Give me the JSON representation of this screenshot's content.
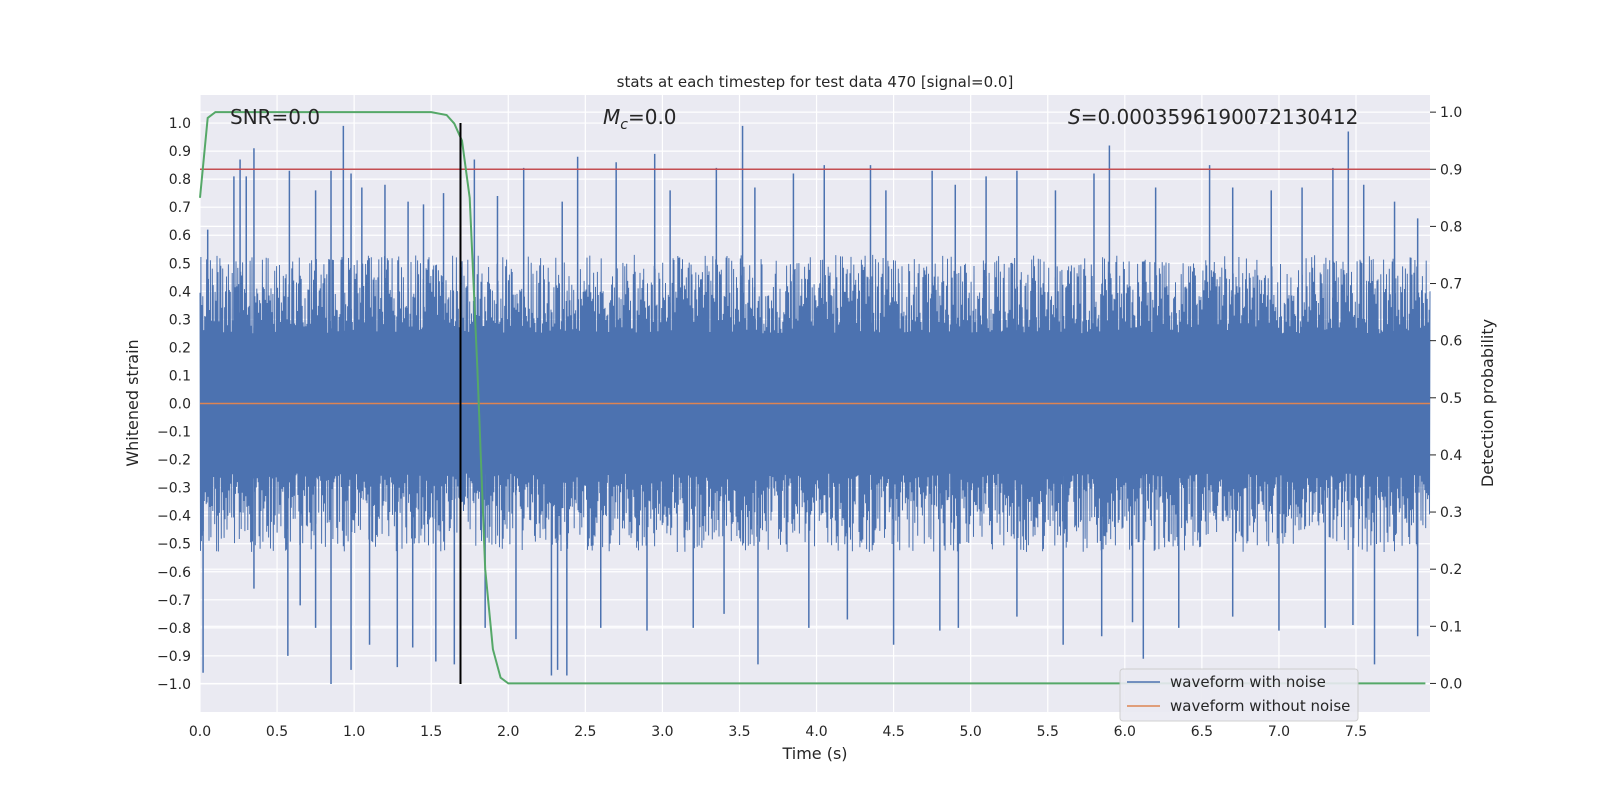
{
  "chart_data": {
    "type": "line",
    "title": "stats at each timestep for test data 470 [signal=0.0]",
    "xlabel": "Time (s)",
    "ylabel": "Whitened strain",
    "y2label": "Detection probability",
    "xlim": [
      0.0,
      7.98
    ],
    "ylim": [
      -1.1,
      1.1
    ],
    "y2lim": [
      -0.05,
      1.03
    ],
    "x_ticks": [
      "0.0",
      "0.5",
      "1.0",
      "1.5",
      "2.0",
      "2.5",
      "3.0",
      "3.5",
      "4.0",
      "4.5",
      "5.0",
      "5.5",
      "6.0",
      "6.5",
      "7.0",
      "7.5"
    ],
    "y_ticks": [
      "1.0",
      "0.9",
      "0.8",
      "0.7",
      "0.6",
      "0.5",
      "0.4",
      "0.3",
      "0.2",
      "0.1",
      "0.0",
      "−0.1",
      "−0.2",
      "−0.3",
      "−0.4",
      "−0.5",
      "−0.6",
      "−0.7",
      "−0.8",
      "−0.9",
      "−1.0"
    ],
    "y2_ticks": [
      "1.0",
      "0.9",
      "0.8",
      "0.7",
      "0.6",
      "0.5",
      "0.4",
      "0.3",
      "0.2",
      "0.1",
      "0.0"
    ],
    "grid": true,
    "legend_position": "lower-right",
    "annotations": {
      "snr": "SNR=0.0",
      "mc_symbol": "M",
      "mc_sub": "c",
      "mc_value": "=0.0",
      "s_symbol": "S",
      "s_value": "=0.0003596190072130412"
    },
    "series": [
      {
        "name": "waveform with noise",
        "color": "#4c72b0",
        "axis": "left",
        "description": "dense whitened noise, approx ±0.3 to ±0.6 envelope with spikes up to ±1.0",
        "peaks_x": [
          0.05,
          0.22,
          0.26,
          0.3,
          0.35,
          0.58,
          0.75,
          0.85,
          0.93,
          0.98,
          1.05,
          1.2,
          1.35,
          1.45,
          1.58,
          1.78,
          1.93,
          2.1,
          2.35,
          2.45,
          2.7,
          2.95,
          3.05,
          3.35,
          3.52,
          3.6,
          3.85,
          4.05,
          4.35,
          4.45,
          4.75,
          4.9,
          5.1,
          5.3,
          5.55,
          5.8,
          5.9,
          6.2,
          6.55,
          6.7,
          6.95,
          7.15,
          7.35,
          7.45,
          7.55,
          7.75,
          7.9
        ],
        "peaks_y": [
          0.62,
          0.81,
          0.87,
          0.81,
          0.91,
          0.83,
          0.76,
          0.83,
          0.99,
          0.82,
          0.77,
          0.78,
          0.72,
          0.71,
          0.75,
          0.87,
          0.74,
          0.84,
          0.72,
          0.88,
          0.86,
          0.89,
          0.76,
          0.84,
          0.99,
          0.77,
          0.82,
          0.85,
          0.85,
          0.76,
          0.83,
          0.78,
          0.81,
          0.83,
          0.76,
          0.82,
          0.92,
          0.77,
          0.85,
          0.77,
          0.76,
          0.77,
          0.84,
          0.97,
          0.78,
          0.72,
          0.66
        ],
        "troughs_x": [
          0.02,
          0.35,
          0.57,
          0.65,
          0.75,
          0.85,
          0.98,
          1.1,
          1.28,
          1.38,
          1.53,
          1.65,
          1.85,
          2.05,
          2.28,
          2.32,
          2.38,
          2.6,
          2.9,
          3.2,
          3.4,
          3.62,
          3.95,
          4.2,
          4.5,
          4.8,
          4.92,
          5.3,
          5.6,
          5.85,
          6.05,
          6.12,
          6.35,
          6.7,
          7.0,
          7.3,
          7.48,
          7.62,
          7.9
        ],
        "troughs_y": [
          -0.96,
          -0.66,
          -0.9,
          -0.72,
          -0.8,
          -1.0,
          -0.95,
          -0.86,
          -0.94,
          -0.87,
          -0.92,
          -0.93,
          -0.8,
          -0.84,
          -0.97,
          -0.95,
          -0.97,
          -0.8,
          -0.81,
          -0.8,
          -0.75,
          -0.93,
          -0.8,
          -0.77,
          -0.86,
          -0.81,
          -0.8,
          -0.76,
          -0.86,
          -0.83,
          -0.78,
          -0.91,
          -0.8,
          -0.76,
          -0.81,
          -0.8,
          -0.79,
          -0.93,
          -0.83
        ]
      },
      {
        "name": "waveform without noise",
        "color": "#dd8452",
        "axis": "left",
        "x": [
          0.0,
          7.98
        ],
        "y": [
          0.0,
          0.0
        ]
      },
      {
        "name": "detection probability",
        "color": "#55a868",
        "axis": "right",
        "x": [
          0.0,
          0.05,
          0.1,
          0.15,
          0.2,
          1.5,
          1.6,
          1.65,
          1.7,
          1.75,
          1.8,
          1.85,
          1.9,
          1.95,
          2.0,
          7.95
        ],
        "y": [
          0.85,
          0.99,
          1.0,
          1.0,
          1.0,
          1.0,
          0.995,
          0.98,
          0.95,
          0.85,
          0.55,
          0.2,
          0.06,
          0.01,
          0.0,
          0.0
        ]
      }
    ],
    "threshold_line": {
      "axis": "right",
      "y": 0.9,
      "color": "#c44e52"
    },
    "marker_line": {
      "x": 1.69,
      "color": "#000000"
    }
  }
}
